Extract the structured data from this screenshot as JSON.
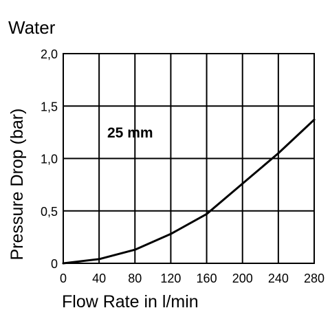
{
  "chart_data": {
    "type": "line",
    "title": "Water",
    "annotation": "25 mm",
    "xlabel": "Flow Rate in l/min",
    "ylabel": "Pressure Drop (bar)",
    "xlim": [
      0,
      280
    ],
    "ylim": [
      0,
      2.0
    ],
    "x_ticks": [
      0,
      40,
      80,
      120,
      160,
      200,
      240,
      280
    ],
    "x_tick_labels": [
      "0",
      "40",
      "80",
      "120",
      "160",
      "200",
      "240",
      "280"
    ],
    "y_ticks": [
      0,
      0.5,
      1.0,
      1.5,
      2.0
    ],
    "y_tick_labels": [
      "0",
      "0,5",
      "1,0",
      "1,5",
      "2,0"
    ],
    "grid": true,
    "line_color": "#000000",
    "series": [
      {
        "x": [
          0,
          40,
          80,
          120,
          160,
          200,
          240,
          280
        ],
        "y": [
          0.0,
          0.04,
          0.13,
          0.28,
          0.47,
          0.76,
          1.05,
          1.37
        ]
      }
    ]
  }
}
